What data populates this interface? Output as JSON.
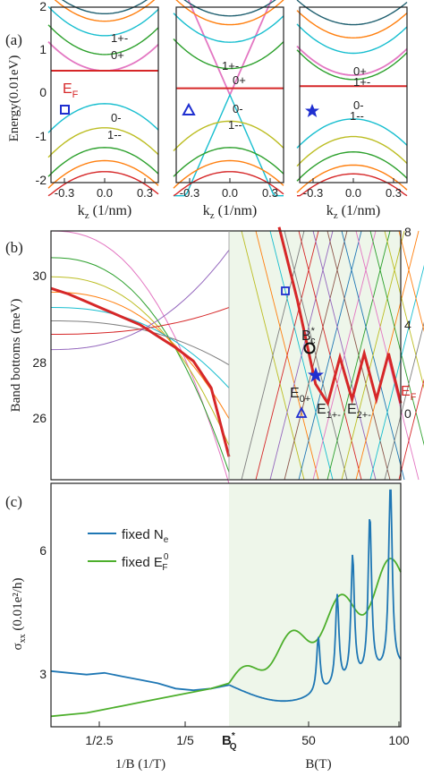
{
  "colors": {
    "fermi": "#d62728",
    "bands": [
      "#e377c2",
      "#2ca02c",
      "#bcbd22",
      "#ff7f0e",
      "#17becf",
      "#7f7f7f",
      "#d62728",
      "#9467bd",
      "#8c564b",
      "#1f77b4"
    ],
    "sigma_ne": "#1f77b4",
    "sigma_ef": "#4daf2c",
    "shade": "#eef6ea",
    "marker": "#1f2fd0"
  },
  "panel_a": {
    "label": "(a)",
    "ylabel": "Energy(0.01eV)",
    "xlabel": "k",
    "xlabel_sub": "z",
    "xlabel_unit": " (1/nm)",
    "yticks": [
      "2",
      "1",
      "0",
      "-1",
      "-2"
    ],
    "xticks": [
      "-0.3",
      "0.0",
      "0.3"
    ],
    "ef_label": "E",
    "ef_sub": "F",
    "sub1": {
      "labels": [
        "1+-",
        "0+",
        "0-",
        "1--"
      ],
      "marker": "square-marker"
    },
    "sub2": {
      "labels": [
        "1+-",
        "0+",
        "0-",
        "1--"
      ],
      "marker": "triangle-marker"
    },
    "sub3": {
      "labels": [
        "0+",
        "1+-",
        "0-",
        "1--"
      ],
      "marker": "star-marker"
    }
  },
  "panel_b": {
    "label": "(b)",
    "ylabel": "Band bottoms (meV)",
    "yticks_left": [
      "30",
      "28",
      "26"
    ],
    "yticks_right": [
      "8",
      "4",
      "0"
    ],
    "bc_label": "B",
    "bc_sup": "*",
    "bc_sub": "c",
    "e0_label": "E",
    "e0_sub": "0+",
    "e1_label": "E",
    "e1_sub": "1+-",
    "e2_label": "E",
    "e2_sub": "2+-",
    "ef_label": "E",
    "ef_sub": "F"
  },
  "panel_c": {
    "label": "(c)",
    "ylabel": "σ",
    "ylabel_sub": "xx",
    "ylabel_unit": " (0.01e²/h)",
    "yticks": [
      "6",
      "3"
    ],
    "legend_ne": "fixed N",
    "legend_ne_sub": "e",
    "legend_ef": "fixed E",
    "legend_ef_sub": "F",
    "legend_ef_sup": "0",
    "xticks": [
      "1/2.5",
      "1/5",
      "B",
      "50",
      "100"
    ],
    "bq_sub": "Q",
    "bq_sup": "*",
    "xlabel_left": "1/B (1/T)",
    "xlabel_right": "B(T)"
  },
  "chart_data": [
    {
      "type": "line",
      "title": "",
      "xlabel": "kz (1/nm)",
      "ylabel": "Energy(0.01eV)",
      "xlim": [
        -0.4,
        0.4
      ],
      "ylim": [
        -2,
        2
      ],
      "subplots": [
        {
          "fermi_level": 0.55,
          "marker": "square",
          "upper_band_minima": [
            0.55,
            0.92,
            1.35,
            1.68,
            1.85
          ],
          "lower_band_maxima": [
            -0.2,
            -0.75,
            -1.2,
            -1.5,
            -1.75
          ]
        },
        {
          "fermi_level": 0.15,
          "marker": "triangle",
          "upper_band_minima": [
            0.0,
            0.6,
            1.2,
            1.6,
            1.8
          ],
          "lower_band_maxima": [
            0.0,
            -0.6,
            -1.2,
            -1.5,
            -1.75
          ]
        },
        {
          "fermi_level": 0.2,
          "marker": "star",
          "upper_band_minima": [
            0.45,
            0.35,
            0.95,
            1.3,
            1.6
          ],
          "lower_band_maxima": [
            -0.55,
            -0.95,
            -1.3,
            -1.6,
            -1.8
          ]
        }
      ]
    },
    {
      "type": "line",
      "title": "",
      "ylabel": "Band bottoms (meV)",
      "ylim_left": [
        25,
        31.5
      ],
      "ylim_right": [
        -2,
        8
      ],
      "fermi_low_field": {
        "x": [
          0,
          0.1,
          0.2,
          0.3,
          0.4,
          0.5,
          0.6,
          0.7,
          0.8,
          0.9,
          1.0
        ],
        "y": [
          30.0,
          29.85,
          29.65,
          29.45,
          29.25,
          29.05,
          28.75,
          28.45,
          28.1,
          27.4,
          25.6
        ]
      },
      "fermi_high_field": {
        "x": [
          0.0,
          0.15,
          0.3,
          0.4,
          0.5,
          0.6,
          0.7,
          0.8,
          0.9,
          1.0
        ],
        "y": [
          31.6,
          29.7,
          27.5,
          27.0,
          28.2,
          27.1,
          28.3,
          27.1,
          28.3,
          27.0
        ]
      },
      "markers": [
        "square",
        "circle",
        "star",
        "triangle"
      ]
    },
    {
      "type": "line",
      "title": "",
      "ylabel": "σxx (0.01e²/h)",
      "ylim": [
        1.5,
        8.5
      ],
      "yticks": [
        6,
        3
      ],
      "series": [
        {
          "name": "fixed Ne",
          "x": [
            0.0,
            0.1,
            0.2,
            0.3,
            0.4,
            0.5,
            0.6,
            0.7,
            0.8,
            0.9,
            1.0
          ],
          "y": [
            3.1,
            3.05,
            3.0,
            3.05,
            2.95,
            2.85,
            2.75,
            2.6,
            2.55,
            2.6,
            2.7
          ]
        },
        {
          "name": "fixed E_F^0",
          "x": [
            0.0,
            0.1,
            0.2,
            0.3,
            0.4,
            0.5,
            0.6,
            0.7,
            0.8,
            0.9,
            1.0
          ],
          "y": [
            1.8,
            1.85,
            1.9,
            2.0,
            2.1,
            2.2,
            2.3,
            2.4,
            2.5,
            2.6,
            2.75
          ]
        }
      ]
    }
  ]
}
